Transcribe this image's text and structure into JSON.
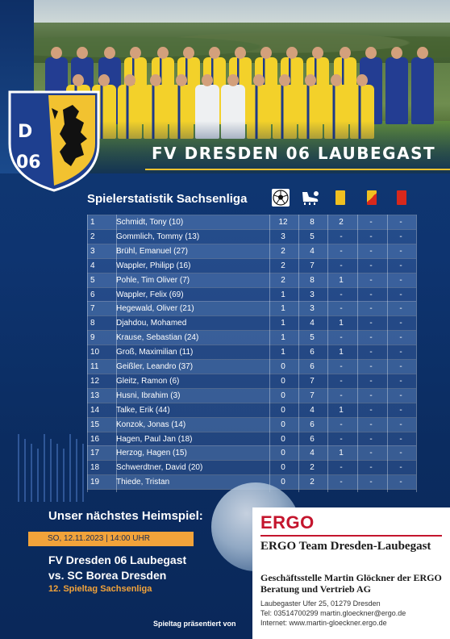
{
  "header": {
    "club_name": "FV DRESDEN 06 LAUBEGAST",
    "crest": {
      "text_top": "D",
      "text_bottom": "06",
      "colors": {
        "yellow": "#f2c230",
        "blue": "#1e3f8f",
        "black": "#111111"
      }
    }
  },
  "stats": {
    "title": "Spielerstatistik Sachsenliga",
    "columns": [
      {
        "key": "goals",
        "icon": "soccer-ball-icon"
      },
      {
        "key": "assists",
        "icon": "boot-icon"
      },
      {
        "key": "yellow",
        "icon": "yellow-card-icon"
      },
      {
        "key": "yellow_red",
        "icon": "yellow-red-card-icon"
      },
      {
        "key": "red",
        "icon": "red-card-icon"
      }
    ],
    "rows": [
      {
        "rank": "1",
        "name": "Schmidt, Tony (10)",
        "goals": "12",
        "assists": "8",
        "yellow": "2",
        "yr": "-",
        "red": "-"
      },
      {
        "rank": "2",
        "name": "Gommlich, Tommy (13)",
        "goals": "3",
        "assists": "5",
        "yellow": "-",
        "yr": "-",
        "red": "-"
      },
      {
        "rank": "3",
        "name": "Brühl, Emanuel (27)",
        "goals": "2",
        "assists": "4",
        "yellow": "-",
        "yr": "-",
        "red": "-"
      },
      {
        "rank": "4",
        "name": "Wappler, Philipp (16)",
        "goals": "2",
        "assists": "7",
        "yellow": "-",
        "yr": "-",
        "red": "-"
      },
      {
        "rank": "5",
        "name": "Pohle, Tim Oliver (7)",
        "goals": "2",
        "assists": "8",
        "yellow": "1",
        "yr": "-",
        "red": "-"
      },
      {
        "rank": "6",
        "name": "Wappler, Felix (69)",
        "goals": "1",
        "assists": "3",
        "yellow": "-",
        "yr": "-",
        "red": "-"
      },
      {
        "rank": "7",
        "name": "Hegewald, Oliver (21)",
        "goals": "1",
        "assists": "3",
        "yellow": "-",
        "yr": "-",
        "red": "-"
      },
      {
        "rank": "8",
        "name": "Djahdou, Mohamed",
        "goals": "1",
        "assists": "4",
        "yellow": "1",
        "yr": "-",
        "red": "-"
      },
      {
        "rank": "9",
        "name": "Krause, Sebastian (24)",
        "goals": "1",
        "assists": "5",
        "yellow": "-",
        "yr": "-",
        "red": "-"
      },
      {
        "rank": "10",
        "name": "Groß, Maximilian (11)",
        "goals": "1",
        "assists": "6",
        "yellow": "1",
        "yr": "-",
        "red": "-"
      },
      {
        "rank": "11",
        "name": "Geißler, Leandro (37)",
        "goals": "0",
        "assists": "6",
        "yellow": "-",
        "yr": "-",
        "red": "-"
      },
      {
        "rank": "12",
        "name": "Gleitz, Ramon (6)",
        "goals": "0",
        "assists": "7",
        "yellow": "-",
        "yr": "-",
        "red": "-"
      },
      {
        "rank": "13",
        "name": "Husni, Ibrahim (3)",
        "goals": "0",
        "assists": "7",
        "yellow": "-",
        "yr": "-",
        "red": "-"
      },
      {
        "rank": "14",
        "name": "Talke, Erik (44)",
        "goals": "0",
        "assists": "4",
        "yellow": "1",
        "yr": "-",
        "red": "-"
      },
      {
        "rank": "15",
        "name": "Konzok, Jonas (14)",
        "goals": "0",
        "assists": "6",
        "yellow": "-",
        "yr": "-",
        "red": "-"
      },
      {
        "rank": "16",
        "name": "Hagen, Paul Jan (18)",
        "goals": "0",
        "assists": "6",
        "yellow": "-",
        "yr": "-",
        "red": "-"
      },
      {
        "rank": "17",
        "name": "Herzog, Hagen (15)",
        "goals": "0",
        "assists": "4",
        "yellow": "1",
        "yr": "-",
        "red": "-"
      },
      {
        "rank": "18",
        "name": "Schwerdtner, David (20)",
        "goals": "0",
        "assists": "2",
        "yellow": "-",
        "yr": "-",
        "red": "-"
      },
      {
        "rank": "19",
        "name": "Thiede, Tristan",
        "goals": "0",
        "assists": "2",
        "yellow": "-",
        "yr": "-",
        "red": "-"
      }
    ]
  },
  "next_match": {
    "title": "Unser nächstes Heimspiel:",
    "date": "SO, 12.11.2023 | 14:00 UHR",
    "home": "FV Dresden 06 Laubegast",
    "away": "vs. SC Borea Dresden",
    "matchday": "12. Spieltag Sachsenliga",
    "presented_by": "Spieltag präsentiert von"
  },
  "sponsor": {
    "logo": "ERGO",
    "team": "ERGO Team Dresden-Laubegast",
    "office": "Geschäftsstelle Martin Glöckner der ERGO Beratung und Vertrieb AG",
    "address": "Laubegaster Ufer 25, 01279 Dresden",
    "phone": "Tel: 03514700299  martin.gloeckner@ergo.de",
    "web": "Internet: www.martin-gloeckner.ergo.de",
    "brand_color": "#c4152d"
  }
}
